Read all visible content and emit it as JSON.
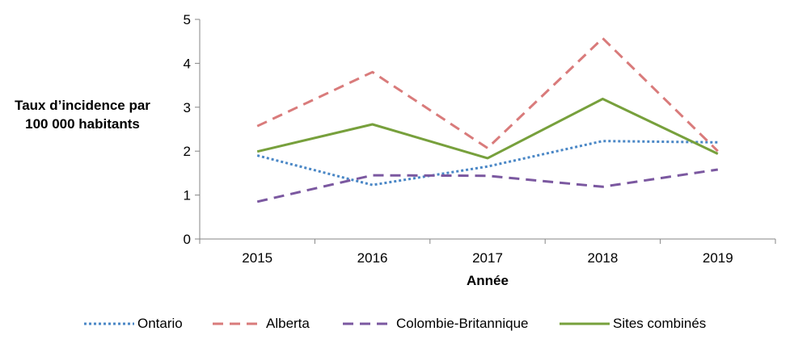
{
  "chart_data": {
    "type": "line",
    "xlabel": "Année",
    "ylabel": "Taux d’incidence par 100 000 habitants",
    "categories": [
      "2015",
      "2016",
      "2017",
      "2018",
      "2019"
    ],
    "ylim": [
      0,
      5
    ],
    "yticks": [
      "0",
      "1",
      "2",
      "3",
      "4",
      "5"
    ],
    "grid": false,
    "legend_position": "bottom",
    "series": [
      {
        "name": "Ontario",
        "values": [
          1.9,
          1.23,
          1.65,
          2.23,
          2.2
        ],
        "color": "#4a87c6",
        "style": "dotted"
      },
      {
        "name": "Alberta",
        "values": [
          2.57,
          3.8,
          2.07,
          4.57,
          2.0
        ],
        "color": "#d97b7b",
        "style": "dashed"
      },
      {
        "name": "Colombie-Britannique",
        "values": [
          0.85,
          1.45,
          1.44,
          1.19,
          1.58
        ],
        "color": "#7b58a0",
        "style": "dashed"
      },
      {
        "name": "Sites combinés",
        "values": [
          1.99,
          2.61,
          1.84,
          3.19,
          1.94
        ],
        "color": "#77a03c",
        "style": "solid"
      }
    ]
  }
}
